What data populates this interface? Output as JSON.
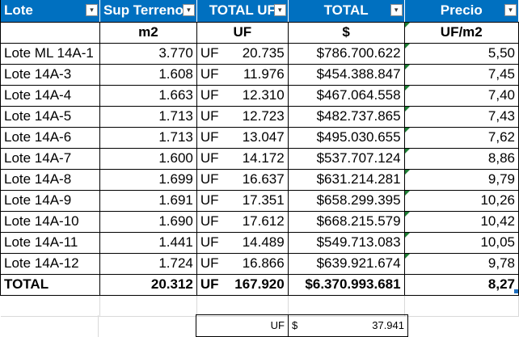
{
  "headers": [
    "Lote",
    "Sup Terreno",
    "TOTAL UF",
    "TOTAL",
    "Precio"
  ],
  "units": [
    "",
    "m2",
    "UF",
    "$",
    "UF/m2"
  ],
  "rows": [
    {
      "lote": "Lote ML 14A-1",
      "sup": "3.770",
      "uf_prefix": "UF",
      "uf": "20.735",
      "total": "$786.700.622",
      "precio": "5,50"
    },
    {
      "lote": "Lote 14A-3",
      "sup": "1.608",
      "uf_prefix": "UF",
      "uf": "11.976",
      "total": "$454.388.847",
      "precio": "7,45"
    },
    {
      "lote": "Lote 14A-4",
      "sup": "1.663",
      "uf_prefix": "UF",
      "uf": "12.310",
      "total": "$467.064.558",
      "precio": "7,40"
    },
    {
      "lote": "Lote 14A-5",
      "sup": "1.713",
      "uf_prefix": "UF",
      "uf": "12.723",
      "total": "$482.737.865",
      "precio": "7,43"
    },
    {
      "lote": "Lote 14A-6",
      "sup": "1.713",
      "uf_prefix": "UF",
      "uf": "13.047",
      "total": "$495.030.655",
      "precio": "7,62"
    },
    {
      "lote": "Lote 14A-7",
      "sup": "1.600",
      "uf_prefix": "UF",
      "uf": "14.172",
      "total": "$537.707.124",
      "precio": "8,86"
    },
    {
      "lote": "Lote 14A-8",
      "sup": "1.699",
      "uf_prefix": "UF",
      "uf": "16.637",
      "total": "$631.214.281",
      "precio": "9,79"
    },
    {
      "lote": "Lote 14A-9",
      "sup": "1.691",
      "uf_prefix": "UF",
      "uf": "17.351",
      "total": "$658.299.395",
      "precio": "10,26"
    },
    {
      "lote": "Lote 14A-10",
      "sup": "1.690",
      "uf_prefix": "UF",
      "uf": "17.612",
      "total": "$668.215.579",
      "precio": "10,42"
    },
    {
      "lote": "Lote 14A-11",
      "sup": "1.441",
      "uf_prefix": "UF",
      "uf": "14.489",
      "total": "$549.713.083",
      "precio": "10,05"
    },
    {
      "lote": "Lote 14A-12",
      "sup": "1.724",
      "uf_prefix": "UF",
      "uf": "16.866",
      "total": "$639.921.674",
      "precio": "9,78"
    }
  ],
  "total_row": {
    "lote": "TOTAL",
    "sup": "20.312",
    "uf_prefix": "UF",
    "uf": "167.920",
    "total": "$6.370.993.681",
    "precio": "8,27"
  },
  "extra": {
    "uf_label": "UF",
    "currency": "$",
    "value": "37.941"
  },
  "colors": {
    "header_bg": "#0070c0",
    "header_text": "#ffffff",
    "indicator": "#1e7e34"
  }
}
